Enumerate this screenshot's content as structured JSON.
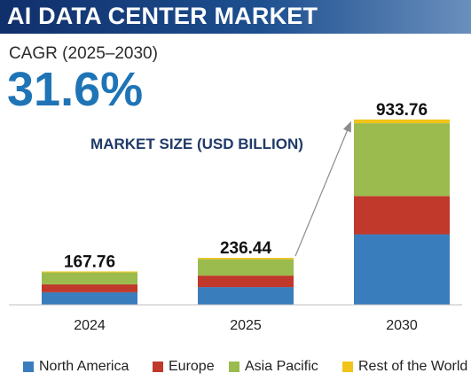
{
  "banner": {
    "title": "AI DATA CENTER MARKET"
  },
  "cagr": {
    "label": "CAGR (2025–2030)",
    "value": "31.6%"
  },
  "colors": {
    "north_america": "#3a7dbd",
    "europe": "#c0392b",
    "asia_pacific": "#9bbb4f",
    "rest_of_world": "#f0c419",
    "axis": "#bfbfbf",
    "arrow": "#8c8c8c",
    "subtitle": "#1f3a68"
  },
  "chart_data": {
    "type": "bar",
    "stacked": true,
    "title": "MARKET SIZE (USD BILLION)",
    "categories": [
      "2024",
      "2025",
      "2030"
    ],
    "totals": [
      167.76,
      236.44,
      933.76
    ],
    "total_labels": [
      "167.76",
      "236.44",
      "933.76"
    ],
    "series": [
      {
        "name": "North America",
        "values": [
          63.0,
          89.0,
          355.0
        ]
      },
      {
        "name": "Europe",
        "values": [
          40.0,
          58.0,
          193.0
        ]
      },
      {
        "name": "Asia Pacific",
        "values": [
          59.76,
          82.44,
          366.76
        ]
      },
      {
        "name": "Rest of the World",
        "values": [
          5.0,
          7.0,
          19.0
        ]
      }
    ],
    "ylim": [
      0,
      1000
    ],
    "grid": false,
    "legend": "bottom",
    "annotation": "arrow from 2025 to 2030"
  }
}
